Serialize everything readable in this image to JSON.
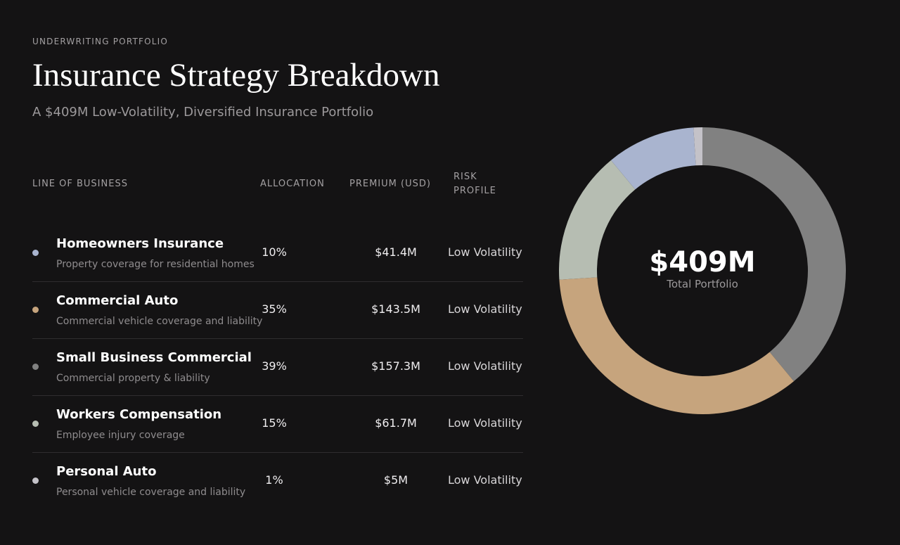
{
  "header": {
    "eyebrow": "UNDERWRITING PORTFOLIO",
    "title": "Insurance Strategy Breakdown",
    "subtitle": "A $409M Low-Volatility, Diversified Insurance Portfolio"
  },
  "table": {
    "columns": {
      "line_of_business": "LINE OF BUSINESS",
      "allocation": "ALLOCATION",
      "premium": "PREMIUM (USD)",
      "risk_profile": "RISK PROFILE"
    },
    "rows": [
      {
        "name": "Homeowners Insurance",
        "description": "Property coverage for residential homes",
        "allocation": "10%",
        "premium": "$41.4M",
        "risk": "Low Volatility",
        "color": "#a9b4cf"
      },
      {
        "name": "Commercial Auto",
        "description": "Commercial vehicle coverage and liability",
        "allocation": "35%",
        "premium": "$143.5M",
        "risk": "Low Volatility",
        "color": "#c6a47d"
      },
      {
        "name": "Small Business Commercial",
        "description": "Commercial property & liability",
        "allocation": "39%",
        "premium": "$157.3M",
        "risk": "Low Volatility",
        "color": "#818181"
      },
      {
        "name": "Workers Compensation",
        "description": "Employee injury coverage",
        "allocation": "15%",
        "premium": "$61.7M",
        "risk": "Low Volatility",
        "color": "#b6bdb2"
      },
      {
        "name": "Personal Auto",
        "description": "Personal vehicle coverage and liability",
        "allocation": "1%",
        "premium": "$5M",
        "risk": "Low Volatility",
        "color": "#c4c2c8"
      }
    ]
  },
  "chart_data": {
    "type": "pie",
    "donut": true,
    "start": "top",
    "direction": "clockwise",
    "center_value": "$409M",
    "center_label": "Total Portfolio",
    "series": [
      {
        "name": "Small Business Commercial",
        "value": 39,
        "color": "#818181"
      },
      {
        "name": "Commercial Auto",
        "value": 35,
        "color": "#c6a47d"
      },
      {
        "name": "Workers Compensation",
        "value": 15,
        "color": "#b6bdb2"
      },
      {
        "name": "Homeowners Insurance",
        "value": 10,
        "color": "#a9b4cf"
      },
      {
        "name": "Personal Auto",
        "value": 1,
        "color": "#c4c2c8"
      }
    ]
  }
}
